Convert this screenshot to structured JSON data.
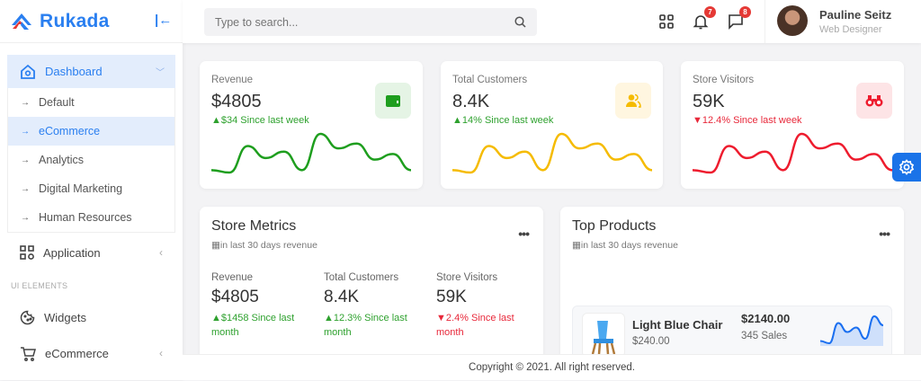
{
  "brand": {
    "name": "Rukada"
  },
  "sidebar": {
    "dashboard": "Dashboard",
    "sub": [
      "Default",
      "eCommerce",
      "Analytics",
      "Digital Marketing",
      "Human Resources"
    ],
    "active_sub": 1,
    "application": "Application",
    "section": "UI ELEMENTS",
    "widgets": "Widgets",
    "ecommerce": "eCommerce"
  },
  "header": {
    "search_placeholder": "Type to search...",
    "notifications": "7",
    "messages": "8",
    "user_name": "Pauline Seitz",
    "user_role": "Web Designer"
  },
  "stats": [
    {
      "title": "Revenue",
      "value": "$4805",
      "change": "$34 Since last week",
      "trend": "up",
      "color": "#1e9e1e",
      "icon": "wallet-icon"
    },
    {
      "title": "Total Customers",
      "value": "8.4K",
      "change": "14% Since last week",
      "trend": "up",
      "color": "#f5bb00",
      "icon": "users-icon"
    },
    {
      "title": "Store Visitors",
      "value": "59K",
      "change": "12.4% Since last week",
      "trend": "down",
      "color": "#ee1c2e",
      "icon": "binoculars-icon"
    }
  ],
  "sparkline": [
    25,
    22,
    55,
    40,
    48,
    25,
    70,
    52,
    58,
    38,
    45,
    25
  ],
  "metrics": {
    "title": "Store Metrics",
    "subtitle": "in last 30 days revenue",
    "items": [
      {
        "title": "Revenue",
        "value": "$4805",
        "change": "$1458 Since last month",
        "trend": "up"
      },
      {
        "title": "Total Customers",
        "value": "8.4K",
        "change": "12.3% Since last month",
        "trend": "up"
      },
      {
        "title": "Store Visitors",
        "value": "59K",
        "change": "2.4% Since last month",
        "trend": "down"
      }
    ]
  },
  "top_products": {
    "title": "Top Products",
    "subtitle": "in last 30 days revenue",
    "items": [
      {
        "name": "Light Blue Chair",
        "price": "$240.00",
        "revenue": "$2140.00",
        "sales": "345 Sales",
        "trend": [
          20,
          15,
          60,
          40,
          50,
          25,
          75,
          55
        ]
      }
    ]
  },
  "footer": "Copyright © 2021. All right reserved."
}
